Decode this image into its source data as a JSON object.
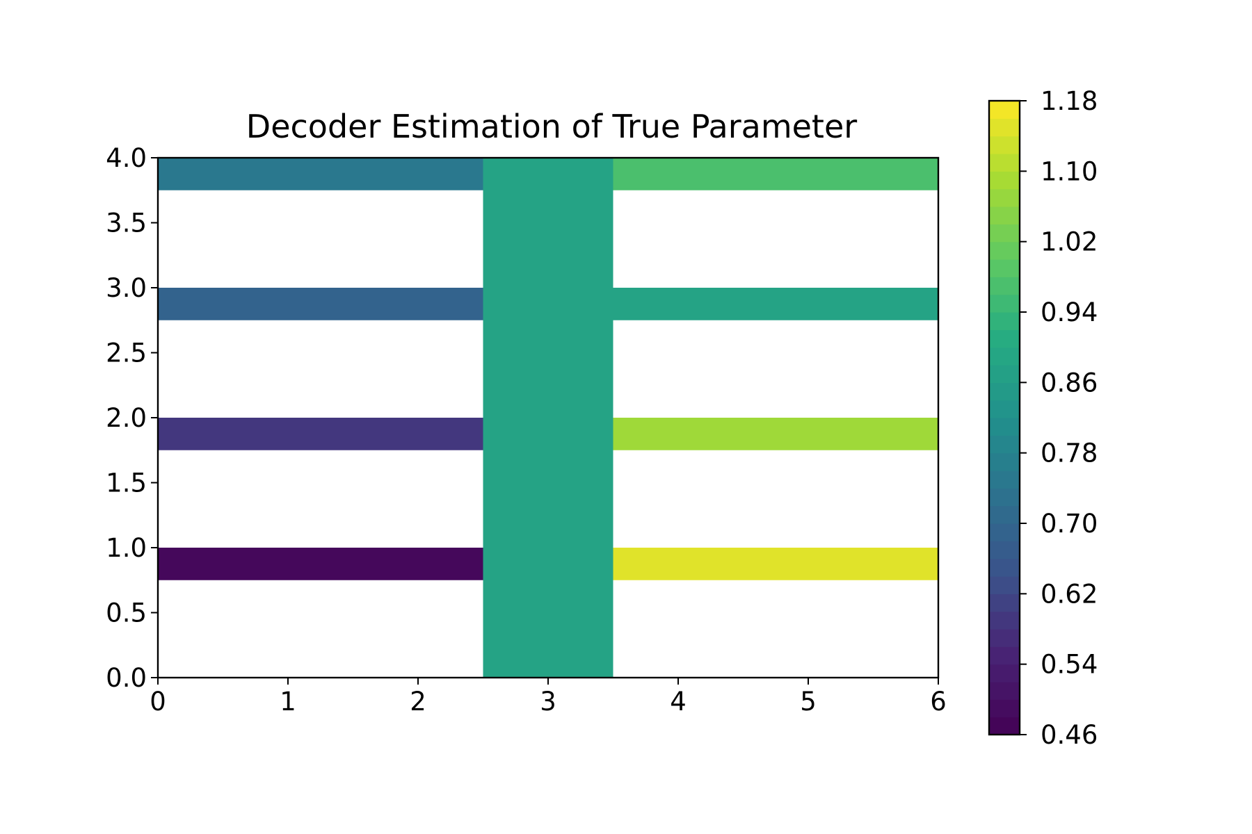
{
  "chart_data": {
    "type": "heatmap",
    "title": "Decoder Estimation of True Parameter",
    "xlabel": "",
    "ylabel": "",
    "xlim": [
      0,
      6
    ],
    "ylim": [
      0,
      4
    ],
    "xticks": [
      "0",
      "1",
      "2",
      "3",
      "4",
      "5",
      "6"
    ],
    "yticks": [
      "0.0",
      "0.5",
      "1.0",
      "1.5",
      "2.0",
      "2.5",
      "3.0",
      "3.5",
      "4.0"
    ],
    "colormap": "viridis",
    "colorbar": {
      "range": [
        0.46,
        1.18
      ],
      "ticks": [
        "0.46",
        "0.54",
        "0.62",
        "0.70",
        "0.78",
        "0.86",
        "0.94",
        "1.02",
        "1.10",
        "1.18"
      ],
      "placement": "right"
    },
    "regions": [
      {
        "name": "left-bar-1",
        "x": [
          0,
          2.5
        ],
        "y": [
          0.75,
          1.0
        ],
        "value": 0.48
      },
      {
        "name": "left-bar-2",
        "x": [
          0,
          2.5
        ],
        "y": [
          1.75,
          2.0
        ],
        "value": 0.59
      },
      {
        "name": "left-bar-3",
        "x": [
          0,
          2.5
        ],
        "y": [
          2.75,
          3.0
        ],
        "value": 0.69
      },
      {
        "name": "left-bar-4",
        "x": [
          0,
          2.5
        ],
        "y": [
          3.75,
          4.0
        ],
        "value": 0.75
      },
      {
        "name": "center-column",
        "x": [
          2.5,
          3.5
        ],
        "y": [
          0,
          4.0
        ],
        "value": 0.88
      },
      {
        "name": "right-bar-1",
        "x": [
          3.5,
          6
        ],
        "y": [
          0.75,
          1.0
        ],
        "value": 1.15
      },
      {
        "name": "right-bar-2",
        "x": [
          3.5,
          6
        ],
        "y": [
          1.75,
          2.0
        ],
        "value": 1.08
      },
      {
        "name": "right-bar-3",
        "x": [
          3.5,
          6
        ],
        "y": [
          2.75,
          3.0
        ],
        "value": 0.88
      },
      {
        "name": "right-bar-4",
        "x": [
          3.5,
          6
        ],
        "y": [
          3.75,
          4.0
        ],
        "value": 0.97
      }
    ]
  }
}
